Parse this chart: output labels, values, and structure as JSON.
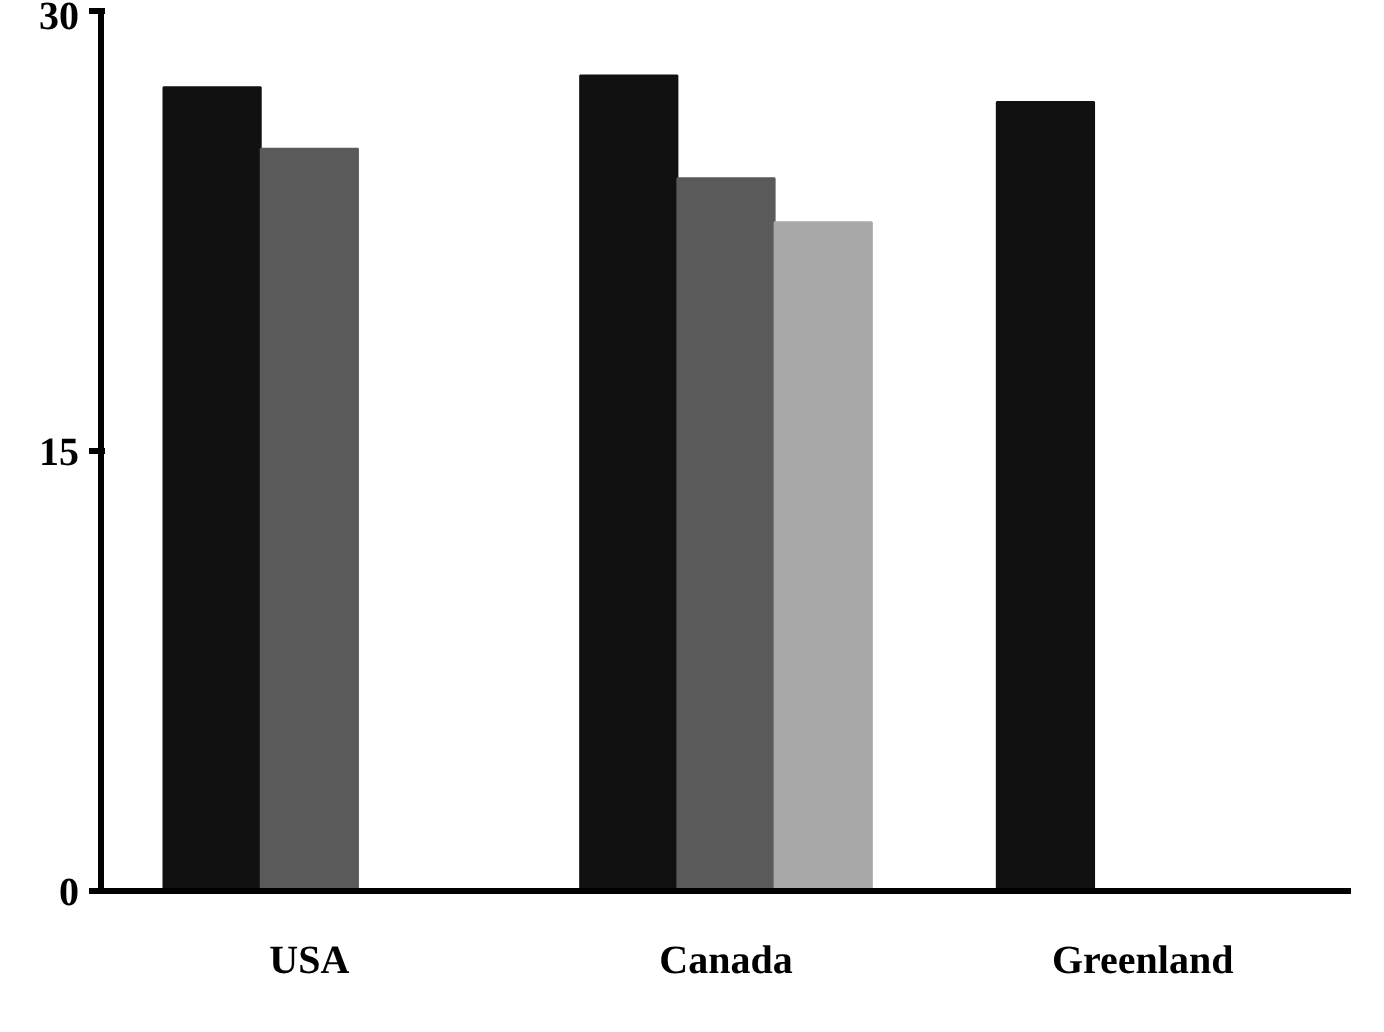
{
  "chart_data": {
    "type": "bar",
    "categories": [
      "USA",
      "Canada",
      "Greenland"
    ],
    "series": [
      {
        "color": "#111111",
        "values": [
          27.4,
          27.8,
          26.9
        ]
      },
      {
        "color": "#5a5a5a",
        "values": [
          25.3,
          24.3,
          null
        ]
      },
      {
        "color": "#a8a8a8",
        "values": [
          null,
          22.8,
          null
        ]
      }
    ],
    "ylim": [
      0,
      30
    ],
    "yticks": [
      0,
      15,
      30
    ],
    "grid": false
  }
}
